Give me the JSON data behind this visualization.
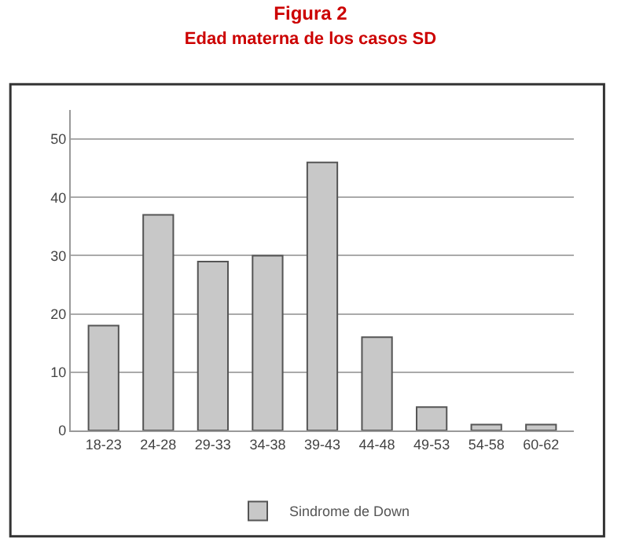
{
  "chart_data": {
    "type": "bar",
    "title": "Figura 2",
    "subtitle": "Edad materna de los casos SD",
    "categories": [
      "18-23",
      "24-28",
      "29-33",
      "34-38",
      "39-43",
      "44-48",
      "49-53",
      "54-58",
      "60-62"
    ],
    "series": [
      {
        "name": "Sindrome de Down",
        "color": "#c8c8c8",
        "values": [
          18,
          37,
          29,
          30,
          46,
          16,
          4,
          1,
          1
        ]
      }
    ],
    "ylim": [
      0,
      55
    ],
    "yticks": [
      0,
      10,
      20,
      30,
      40,
      50
    ],
    "grid": "y",
    "legend": "bottom"
  }
}
